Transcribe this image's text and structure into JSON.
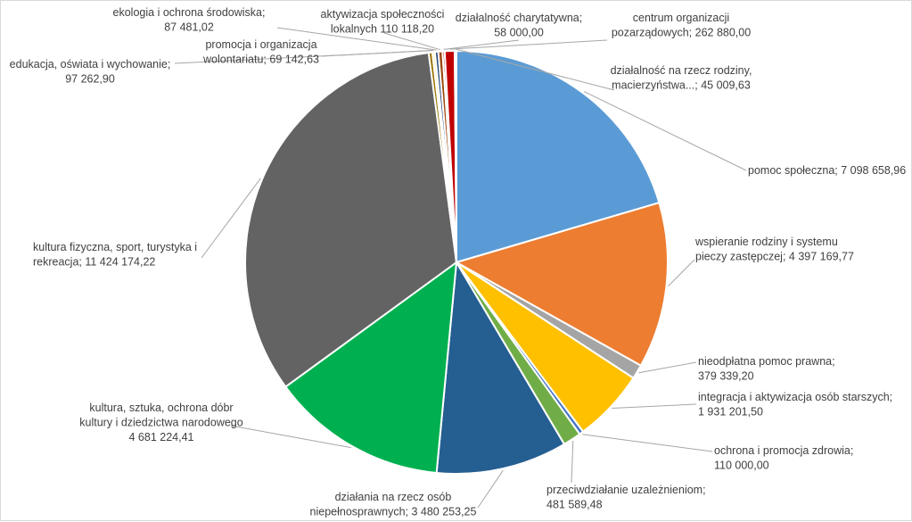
{
  "chart_data": {
    "type": "pie",
    "title": "",
    "value_unit": "",
    "slices": [
      {
        "label": "pomoc społeczna",
        "value": 7098658.96,
        "display_value": "7 098 658,96",
        "color": "#5b9bd5"
      },
      {
        "label": "wspieranie rodziny i systemu pieczy zastępczej",
        "value": 4397169.77,
        "display_value": "4 397 169,77",
        "color": "#ed7d31"
      },
      {
        "label": "nieodpłatna pomoc prawna",
        "value": 379339.2,
        "display_value": "379 339,20",
        "color": "#a5a5a5"
      },
      {
        "label": "integracja i aktywizacja osób starszych",
        "value": 1931201.5,
        "display_value": "1 931 201,50",
        "color": "#ffc000"
      },
      {
        "label": "ochrona i promocja zdrowia",
        "value": 110000.0,
        "display_value": "110 000,00",
        "color": "#4472c4"
      },
      {
        "label": "przeciwdziałanie uzależnieniom",
        "value": 481589.48,
        "display_value": "481 589,48",
        "color": "#70ad47"
      },
      {
        "label": "działania na rzecz osób niepełnosprawnych",
        "value": 3480253.25,
        "display_value": "3 480 253,25",
        "color": "#255e91"
      },
      {
        "label": "kultura, sztuka, ochrona dóbr kultury i dziedzictwa narodowego",
        "value": 4681224.41,
        "display_value": "4 681 224,41",
        "color": "#00b050"
      },
      {
        "label": "kultura fizyczna, sport, turystyka i rekreacja",
        "value": 11424174.22,
        "display_value": "11 424 174,22",
        "color": "#636363"
      },
      {
        "label": "edukacja, oświata i wychowanie",
        "value": 97262.9,
        "display_value": "97 262,90",
        "color": "#997300"
      },
      {
        "label": "promocja i organizacja wolontariatu",
        "value": 69142.63,
        "display_value": "69 142,63",
        "color": "#fff2a0"
      },
      {
        "label": "ekologia i ochrona środowiska",
        "value": 87481.02,
        "display_value": "87 481,02",
        "color": "#264478"
      },
      {
        "label": "aktywizacja społeczności lokalnych",
        "value": 110118.2,
        "display_value": "110 118,20",
        "color": "#9e480e"
      },
      {
        "label": "działalność charytatywna",
        "value": 58000.0,
        "display_value": "58 000,00",
        "color": "#c00000"
      },
      {
        "label": "centrum organizacji pozarządowych",
        "value": 262880.0,
        "display_value": "262 880,00",
        "color": "#c00000"
      },
      {
        "label": "działalność na rzecz rodziny, macierzyństwa…",
        "value": 45009.63,
        "display_value": "45 009,63",
        "color": "#dae3f3"
      }
    ],
    "data_labels": [
      {
        "slice": "pomoc społeczna",
        "lines": [
          "pomoc społeczna; 7 098 658,96"
        ]
      },
      {
        "slice": "wspieranie rodziny i systemu pieczy zastępczej",
        "lines": [
          "wspieranie rodziny i systemu",
          "pieczy zastępczej; 4 397 169,77"
        ]
      },
      {
        "slice": "nieodpłatna pomoc prawna",
        "lines": [
          "nieodpłatna pomoc prawna;",
          "379 339,20"
        ]
      },
      {
        "slice": "integracja i aktywizacja osób starszych",
        "lines": [
          "integracja i aktywizacja osób starszych;",
          "1 931 201,50"
        ]
      },
      {
        "slice": "ochrona i promocja zdrowia",
        "lines": [
          "ochrona i promocja zdrowia;",
          "110 000,00"
        ]
      },
      {
        "slice": "przeciwdziałanie uzależnieniom",
        "lines": [
          "przeciwdziałanie uzależnieniom;",
          "481 589,48"
        ]
      },
      {
        "slice": "działania na rzecz osób niepełnosprawnych",
        "lines": [
          "działania na rzecz osób",
          "niepełnosprawnych; 3 480 253,25"
        ]
      },
      {
        "slice": "kultura, sztuka, ochrona dóbr kultury i dziedzictwa narodowego",
        "lines": [
          "kultura, sztuka, ochrona dóbr",
          "kultury i dziedzictwa narodowego",
          "4 681 224,41"
        ]
      },
      {
        "slice": "kultura fizyczna, sport, turystyka i rekreacja",
        "lines": [
          "kultura fizyczna, sport, turystyka i",
          "rekreacja; 11 424 174,22"
        ]
      },
      {
        "slice": "edukacja, oświata i wychowanie",
        "lines": [
          "edukacja, oświata i wychowanie;",
          "97 262,90"
        ]
      },
      {
        "slice": "promocja i organizacja wolontariatu",
        "lines": [
          "promocja i organizacja",
          "wolontariatu; 69 142,63"
        ]
      },
      {
        "slice": "ekologia i ochrona środowiska",
        "lines": [
          "ekologia i ochrona środowiska;",
          "87 481,02"
        ]
      },
      {
        "slice": "aktywizacja społeczności lokalnych",
        "lines": [
          "aktywizacja społeczności",
          "lokalnych  110 118,20"
        ]
      },
      {
        "slice": "działalność charytatywna",
        "lines": [
          "działalność charytatywna;",
          "58 000,00"
        ]
      },
      {
        "slice": "centrum organizacji pozarządowych",
        "lines": [
          "centrum organizacji",
          "pozarządowych; 262 880,00"
        ]
      },
      {
        "slice": "działalność na rzecz rodziny, macierzyństwa…",
        "lines": [
          "działalność na rzecz rodziny,",
          "macierzyństwa...; 45 009,63"
        ]
      }
    ],
    "legend": "none",
    "grid": false
  }
}
